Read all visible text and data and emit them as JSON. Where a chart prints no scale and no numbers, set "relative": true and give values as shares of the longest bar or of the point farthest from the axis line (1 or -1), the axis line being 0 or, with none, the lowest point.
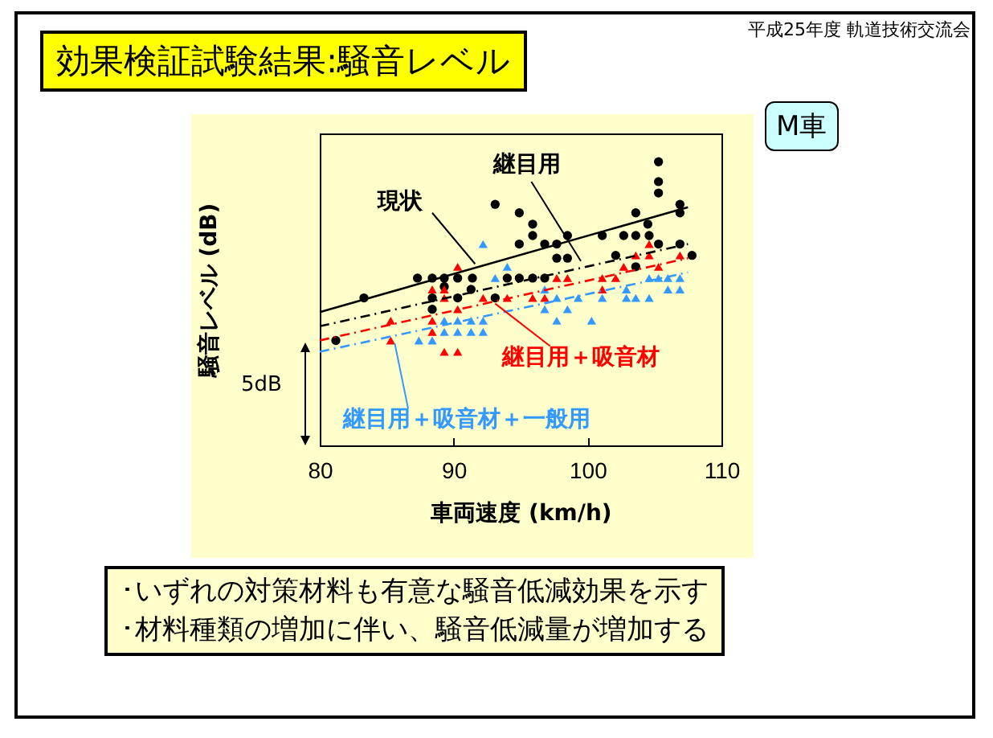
{
  "chart_data": {
    "type": "scatter",
    "title": "効果検証試験結果:騒音レベル",
    "subtitle": "平成25年度 軌道技術交流会",
    "xlabel": "車両速度 (km/h)",
    "ylabel": "騒音レベル (dB)",
    "relative": true,
    "xlim": [
      80,
      110
    ],
    "xticks": [
      80,
      90,
      100,
      110
    ],
    "tick_labels": "x",
    "annotations": [
      "M車",
      "5dB",
      "･いずれの対策材料も有意な騒音低減効果を示す",
      "･材料種類の増加に伴い、騒音低減量が増加する"
    ],
    "series": [
      {
        "name": "現状",
        "color": "#000000",
        "marker": "circle",
        "x": [
          83.3,
          87.3,
          88.4,
          89.3,
          91.4,
          88.4,
          89.3,
          94.9,
          95.9,
          96.8,
          97.7,
          98.5,
          97.7,
          98.5,
          101.1,
          102.7,
          103.6,
          104.6,
          103.6,
          104.5,
          105.3,
          105.3,
          105.3,
          106.9
        ],
        "values": [
          0.52,
          0.59,
          0.59,
          0.59,
          0.59,
          0.52,
          0.56,
          0.71,
          0.74,
          0.71,
          0.71,
          0.74,
          0.66,
          0.66,
          0.74,
          0.74,
          0.74,
          0.74,
          0.82,
          0.78,
          1.0,
          0.93,
          0.89,
          0.85
        ]
      },
      {
        "name": "継目用",
        "color": "#000000",
        "marker": "circle",
        "x": [
          81.2,
          88.4,
          90.3,
          90.3,
          91.3,
          93.1,
          94.9,
          95.9,
          94.0,
          94.9,
          95.9,
          96.8,
          93.1,
          102.1,
          103.6,
          105.3,
          106.9,
          106.9,
          107.8
        ],
        "values": [
          0.37,
          0.48,
          0.52,
          0.59,
          0.55,
          0.85,
          0.82,
          0.78,
          0.59,
          0.59,
          0.59,
          0.59,
          0.52,
          0.67,
          0.63,
          0.71,
          0.82,
          0.71,
          0.67
        ]
      },
      {
        "name": "継目用＋吸音材",
        "color": "#ff0000",
        "marker": "triangle",
        "x": [
          85.3,
          85.3,
          88.4,
          89.3,
          88.4,
          88.4,
          89.3,
          90.3,
          90.3,
          89.3,
          90.3,
          92.2,
          94.0,
          95.9,
          96.8,
          97.7,
          98.5,
          101.1,
          101.1,
          102.1,
          102.7,
          103.6,
          104.6,
          104.6,
          105.3,
          106.9
        ],
        "values": [
          0.44,
          0.37,
          0.55,
          0.55,
          0.44,
          0.4,
          0.52,
          0.48,
          0.63,
          0.33,
          0.33,
          0.52,
          0.52,
          0.52,
          0.52,
          0.59,
          0.59,
          0.55,
          0.59,
          0.59,
          0.63,
          0.67,
          0.67,
          0.71,
          0.63,
          0.67
        ]
      },
      {
        "name": "継目用＋吸音材＋一般用",
        "color": "#3399ff",
        "marker": "triangle",
        "x": [
          87.4,
          88.4,
          89.3,
          90.3,
          91.3,
          92.2,
          89.3,
          90.3,
          91.3,
          92.2,
          92.2,
          94.0,
          93.1,
          96.8,
          97.7,
          96.8,
          98.5,
          97.7,
          100.3,
          101.1,
          99.3,
          102.9,
          102.9,
          103.6,
          104.6,
          104.6,
          105.3,
          106.0,
          106.9,
          106.0,
          106.9
        ],
        "values": [
          0.37,
          0.37,
          0.4,
          0.4,
          0.4,
          0.4,
          0.44,
          0.44,
          0.44,
          0.44,
          0.71,
          0.63,
          0.59,
          0.55,
          0.52,
          0.48,
          0.48,
          0.44,
          0.44,
          0.52,
          0.52,
          0.55,
          0.52,
          0.52,
          0.52,
          0.59,
          0.59,
          0.59,
          0.59,
          0.55,
          0.55
        ]
      },
      {
        "type": "line",
        "color": "#000000",
        "line_style": "solid",
        "x": [
          80,
          107.5
        ],
        "values": [
          0.47,
          0.84
        ]
      },
      {
        "type": "line",
        "color": "#000000",
        "line_style": "dashed",
        "x": [
          80,
          107.5
        ],
        "values": [
          0.42,
          0.71
        ]
      },
      {
        "type": "line",
        "color": "#ff0000",
        "line_style": "dashed",
        "x": [
          80,
          107.5
        ],
        "values": [
          0.37,
          0.66
        ]
      },
      {
        "type": "line",
        "color": "#3399ff",
        "line_style": "dashed",
        "x": [
          80,
          107.5
        ],
        "values": [
          0.33,
          0.61
        ]
      }
    ]
  }
}
